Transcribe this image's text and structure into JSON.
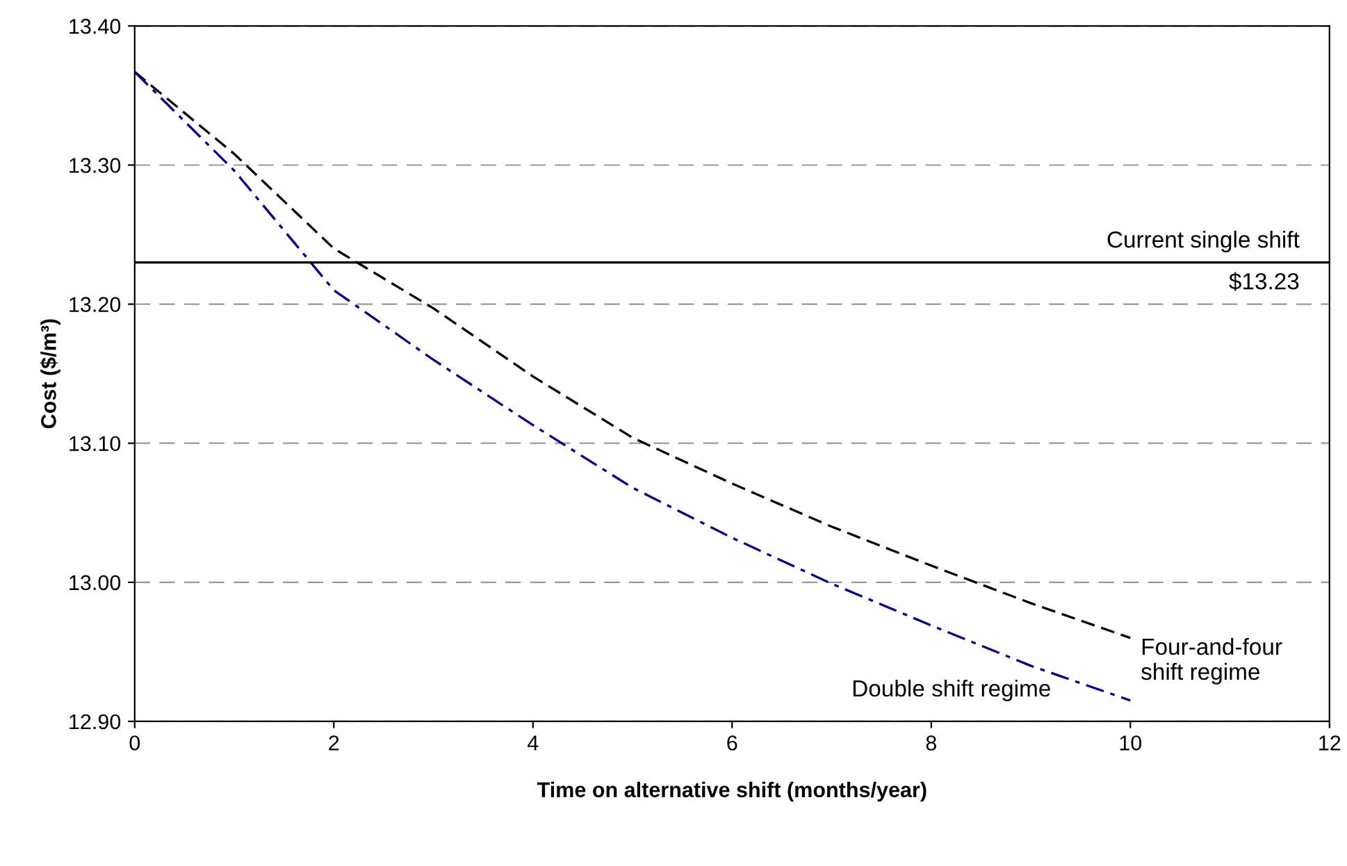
{
  "chart_data": {
    "type": "line",
    "xlabel": "Time on alternative shift (months/year)",
    "ylabel": "Cost ($/m³)",
    "x": [
      0,
      1,
      2,
      3,
      4,
      5,
      6,
      7,
      8,
      9,
      10
    ],
    "series": [
      {
        "color": "#000000",
        "line_style": "dashed",
        "values": [
          13.367,
          13.308,
          13.24,
          13.197,
          13.148,
          13.104,
          13.071,
          13.04,
          13.012,
          12.985,
          12.96
        ]
      },
      {
        "color": "#000080",
        "line_style": "dashdot",
        "values": [
          13.367,
          13.296,
          13.21,
          13.16,
          13.113,
          13.068,
          13.032,
          12.999,
          12.969,
          12.94,
          12.915
        ]
      }
    ],
    "xlim": [
      0,
      12
    ],
    "xticks": [
      0,
      2,
      4,
      6,
      8,
      10,
      12
    ],
    "ylim": [
      12.9,
      13.4
    ],
    "yticks": [
      {
        "value": 12.9,
        "label": "12.90"
      },
      {
        "value": 13.0,
        "label": "13.00"
      },
      {
        "value": 13.1,
        "label": "13.10"
      },
      {
        "value": 13.2,
        "label": "13.20"
      },
      {
        "value": 13.3,
        "label": "13.30"
      },
      {
        "value": 13.4,
        "label": "13.40"
      }
    ],
    "grid": "y",
    "legend": false,
    "marker": "none",
    "ref_lines": [
      {
        "axis": "y",
        "value": 13.23,
        "label": "Current single shift\n$13.23",
        "color": "#000000",
        "line_style": "solid"
      }
    ],
    "annotations": [
      "Four-and-four\nshift regime",
      "Double shift regime"
    ]
  }
}
